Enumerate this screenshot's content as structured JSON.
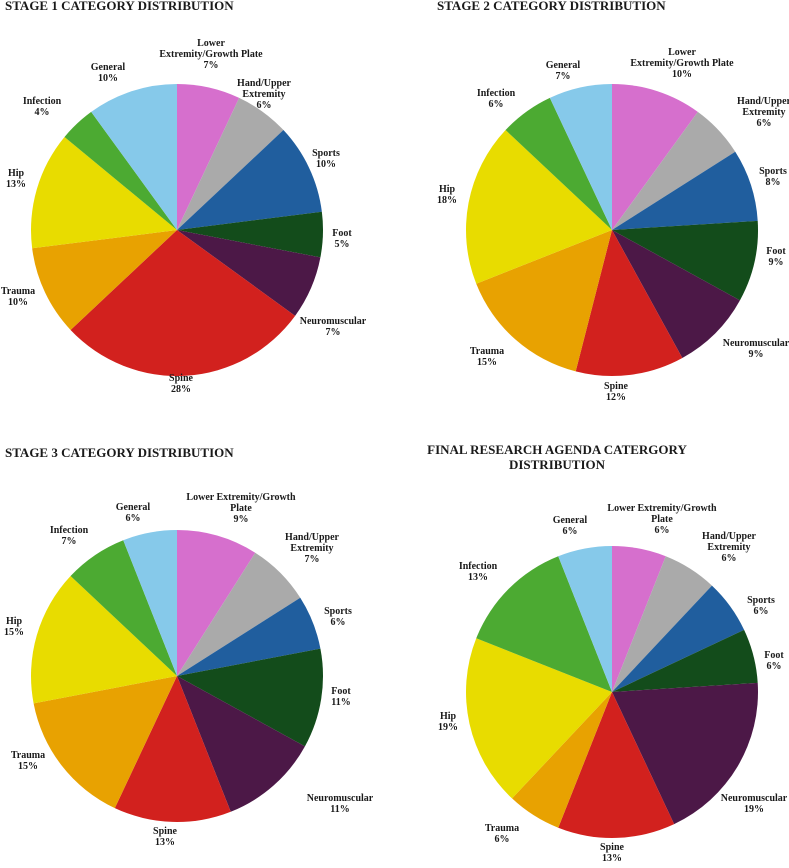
{
  "chart_data": [
    {
      "type": "pie",
      "title": [
        "STAGE 1 CATEGORY DISTRIBUTION"
      ],
      "categories": [
        "Lower Extremity/Growth Plate",
        "Hand/Upper Extremity",
        "Sports",
        "Foot",
        "Neuromuscular",
        "Spine",
        "Trauma",
        "Hip",
        "Infection",
        "General"
      ],
      "values": [
        7,
        6,
        10,
        5,
        7,
        28,
        10,
        13,
        4,
        10
      ],
      "display_values": [
        "7%",
        "6%",
        "10%",
        "5%",
        "7%",
        "28%",
        "10%",
        "13%",
        "4%",
        "10%"
      ],
      "label_lines": [
        [
          "Lower",
          "Extremity/Growth Plate"
        ],
        [
          "Hand/Upper",
          "Extremity"
        ],
        [
          "Sports"
        ],
        [
          "Foot"
        ],
        [
          "Neuromuscular"
        ],
        [
          "Spine"
        ],
        [
          "Trauma"
        ],
        [
          "Hip"
        ],
        [
          "Infection"
        ],
        [
          "General"
        ]
      ],
      "colors": [
        "#d66fcd",
        "#aaaaaa",
        "#205e9e",
        "#134c1b",
        "#4c1847",
        "#d2211e",
        "#e8a201",
        "#e8dc00",
        "#4caa32",
        "#86c9ea"
      ]
    },
    {
      "type": "pie",
      "title": [
        "STAGE 2 CATEGORY DISTRIBUTION"
      ],
      "categories": [
        "Lower Extremity/Growth Plate",
        "Hand/Upper Extremity",
        "Sports",
        "Foot",
        "Neuromuscular",
        "Spine",
        "Trauma",
        "Hip",
        "Infection",
        "General"
      ],
      "values": [
        10,
        6,
        8,
        9,
        9,
        12,
        15,
        18,
        6,
        7
      ],
      "display_values": [
        "10%",
        "6%",
        "8%",
        "9%",
        "9%",
        "12%",
        "15%",
        "18%",
        "6%",
        "7%"
      ],
      "label_lines": [
        [
          "Lower",
          "Extremity/Growth Plate"
        ],
        [
          "Hand/Upper",
          "Extremity"
        ],
        [
          "Sports"
        ],
        [
          "Foot"
        ],
        [
          "Neuromuscular"
        ],
        [
          "Spine"
        ],
        [
          "Trauma"
        ],
        [
          "Hip"
        ],
        [
          "Infection"
        ],
        [
          "General"
        ]
      ],
      "colors": [
        "#d66fcd",
        "#aaaaaa",
        "#205e9e",
        "#134c1b",
        "#4c1847",
        "#d2211e",
        "#e8a201",
        "#e8dc00",
        "#4caa32",
        "#86c9ea"
      ]
    },
    {
      "type": "pie",
      "title": [
        "STAGE 3 CATEGORY DISTRIBUTION"
      ],
      "categories": [
        "Lower Extremity/Growth Plate",
        "Hand/Upper Extremity",
        "Sports",
        "Foot",
        "Neuromuscular",
        "Spine",
        "Trauma",
        "Hip",
        "Infection",
        "General"
      ],
      "values": [
        9,
        7,
        6,
        11,
        11,
        13,
        15,
        15,
        7,
        6
      ],
      "display_values": [
        "9%",
        "7%",
        "6%",
        "11%",
        "11%",
        "13%",
        "15%",
        "15%",
        "7%",
        "6%"
      ],
      "label_lines": [
        [
          "Lower Extremity/Growth",
          "Plate"
        ],
        [
          "Hand/Upper",
          "Extremity"
        ],
        [
          "Sports"
        ],
        [
          "Foot"
        ],
        [
          "Neuromuscular"
        ],
        [
          "Spine"
        ],
        [
          "Trauma"
        ],
        [
          "Hip"
        ],
        [
          "Infection"
        ],
        [
          "General"
        ]
      ],
      "colors": [
        "#d66fcd",
        "#aaaaaa",
        "#205e9e",
        "#134c1b",
        "#4c1847",
        "#d2211e",
        "#e8a201",
        "#e8dc00",
        "#4caa32",
        "#86c9ea"
      ]
    },
    {
      "type": "pie",
      "title": [
        "FINAL RESEARCH AGENDA CATERGORY",
        "DISTRIBUTION"
      ],
      "categories": [
        "Lower Extremity/Growth Plate",
        "Hand/Upper Extremity",
        "Sports",
        "Foot",
        "Neuromuscular",
        "Spine",
        "Trauma",
        "Hip",
        "Infection",
        "General"
      ],
      "values": [
        6,
        6,
        6,
        6,
        19,
        13,
        6,
        19,
        13,
        6
      ],
      "display_values": [
        "6%",
        "6%",
        "6%",
        "6%",
        "19%",
        "13%",
        "6%",
        "19%",
        "13%",
        "6%"
      ],
      "label_lines": [
        [
          "Lower Extremity/Growth",
          "Plate"
        ],
        [
          "Hand/Upper",
          "Extremity"
        ],
        [
          "Sports"
        ],
        [
          "Foot"
        ],
        [
          "Neuromuscular"
        ],
        [
          "Spine"
        ],
        [
          "Trauma"
        ],
        [
          "Hip"
        ],
        [
          "Infection"
        ],
        [
          "General"
        ]
      ],
      "colors": [
        "#d66fcd",
        "#aaaaaa",
        "#205e9e",
        "#134c1b",
        "#4c1847",
        "#d2211e",
        "#e8a201",
        "#e8dc00",
        "#4caa32",
        "#86c9ea"
      ]
    }
  ]
}
